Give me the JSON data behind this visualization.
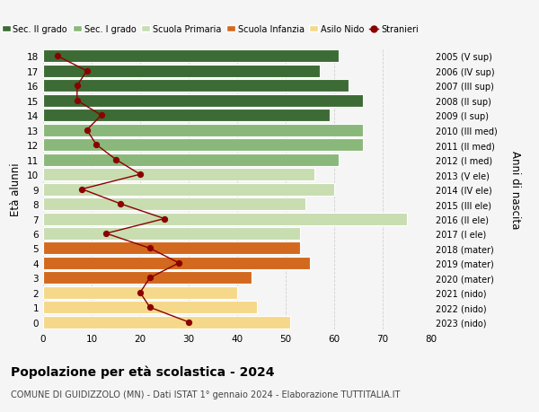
{
  "ages": [
    18,
    17,
    16,
    15,
    14,
    13,
    12,
    11,
    10,
    9,
    8,
    7,
    6,
    5,
    4,
    3,
    2,
    1,
    0
  ],
  "years": [
    "2005 (V sup)",
    "2006 (IV sup)",
    "2007 (III sup)",
    "2008 (II sup)",
    "2009 (I sup)",
    "2010 (III med)",
    "2011 (II med)",
    "2012 (I med)",
    "2013 (V ele)",
    "2014 (IV ele)",
    "2015 (III ele)",
    "2016 (II ele)",
    "2017 (I ele)",
    "2018 (mater)",
    "2019 (mater)",
    "2020 (mater)",
    "2021 (nido)",
    "2022 (nido)",
    "2023 (nido)"
  ],
  "bar_values": [
    61,
    57,
    63,
    66,
    59,
    66,
    66,
    61,
    56,
    60,
    54,
    75,
    53,
    53,
    55,
    43,
    40,
    44,
    51
  ],
  "stranieri": [
    3,
    9,
    7,
    7,
    12,
    9,
    11,
    15,
    20,
    8,
    16,
    25,
    13,
    22,
    28,
    22,
    20,
    22,
    30
  ],
  "bar_colors": {
    "sec2": "#3d6b35",
    "sec1": "#8ab87a",
    "primaria": "#c8ddb0",
    "infanzia": "#d2691e",
    "nido": "#f5d88a"
  },
  "school_levels": {
    "sec2": [
      14,
      15,
      16,
      17,
      18
    ],
    "sec1": [
      11,
      12,
      13
    ],
    "primaria": [
      6,
      7,
      8,
      9,
      10
    ],
    "infanzia": [
      3,
      4,
      5
    ],
    "nido": [
      0,
      1,
      2
    ]
  },
  "title": "Popolazione per età scolastica - 2024",
  "subtitle": "COMUNE DI GUIDIZZOLO (MN) - Dati ISTAT 1° gennaio 2024 - Elaborazione TUTTITALIA.IT",
  "ylabel": "Età alunni",
  "y2label": "Anni di nascita",
  "xlim": [
    0,
    80
  ],
  "xticks": [
    0,
    10,
    20,
    30,
    40,
    50,
    60,
    70,
    80
  ],
  "legend_labels": [
    "Sec. II grado",
    "Sec. I grado",
    "Scuola Primaria",
    "Scuola Infanzia",
    "Asilo Nido",
    "Stranieri"
  ],
  "legend_colors": [
    "#3d6b35",
    "#8ab87a",
    "#c8ddb0",
    "#d2691e",
    "#f5d88a",
    "#8b0000"
  ],
  "stranieri_color": "#8b0000",
  "background_color": "#f5f5f5",
  "grid_color": "#d0d0d0"
}
